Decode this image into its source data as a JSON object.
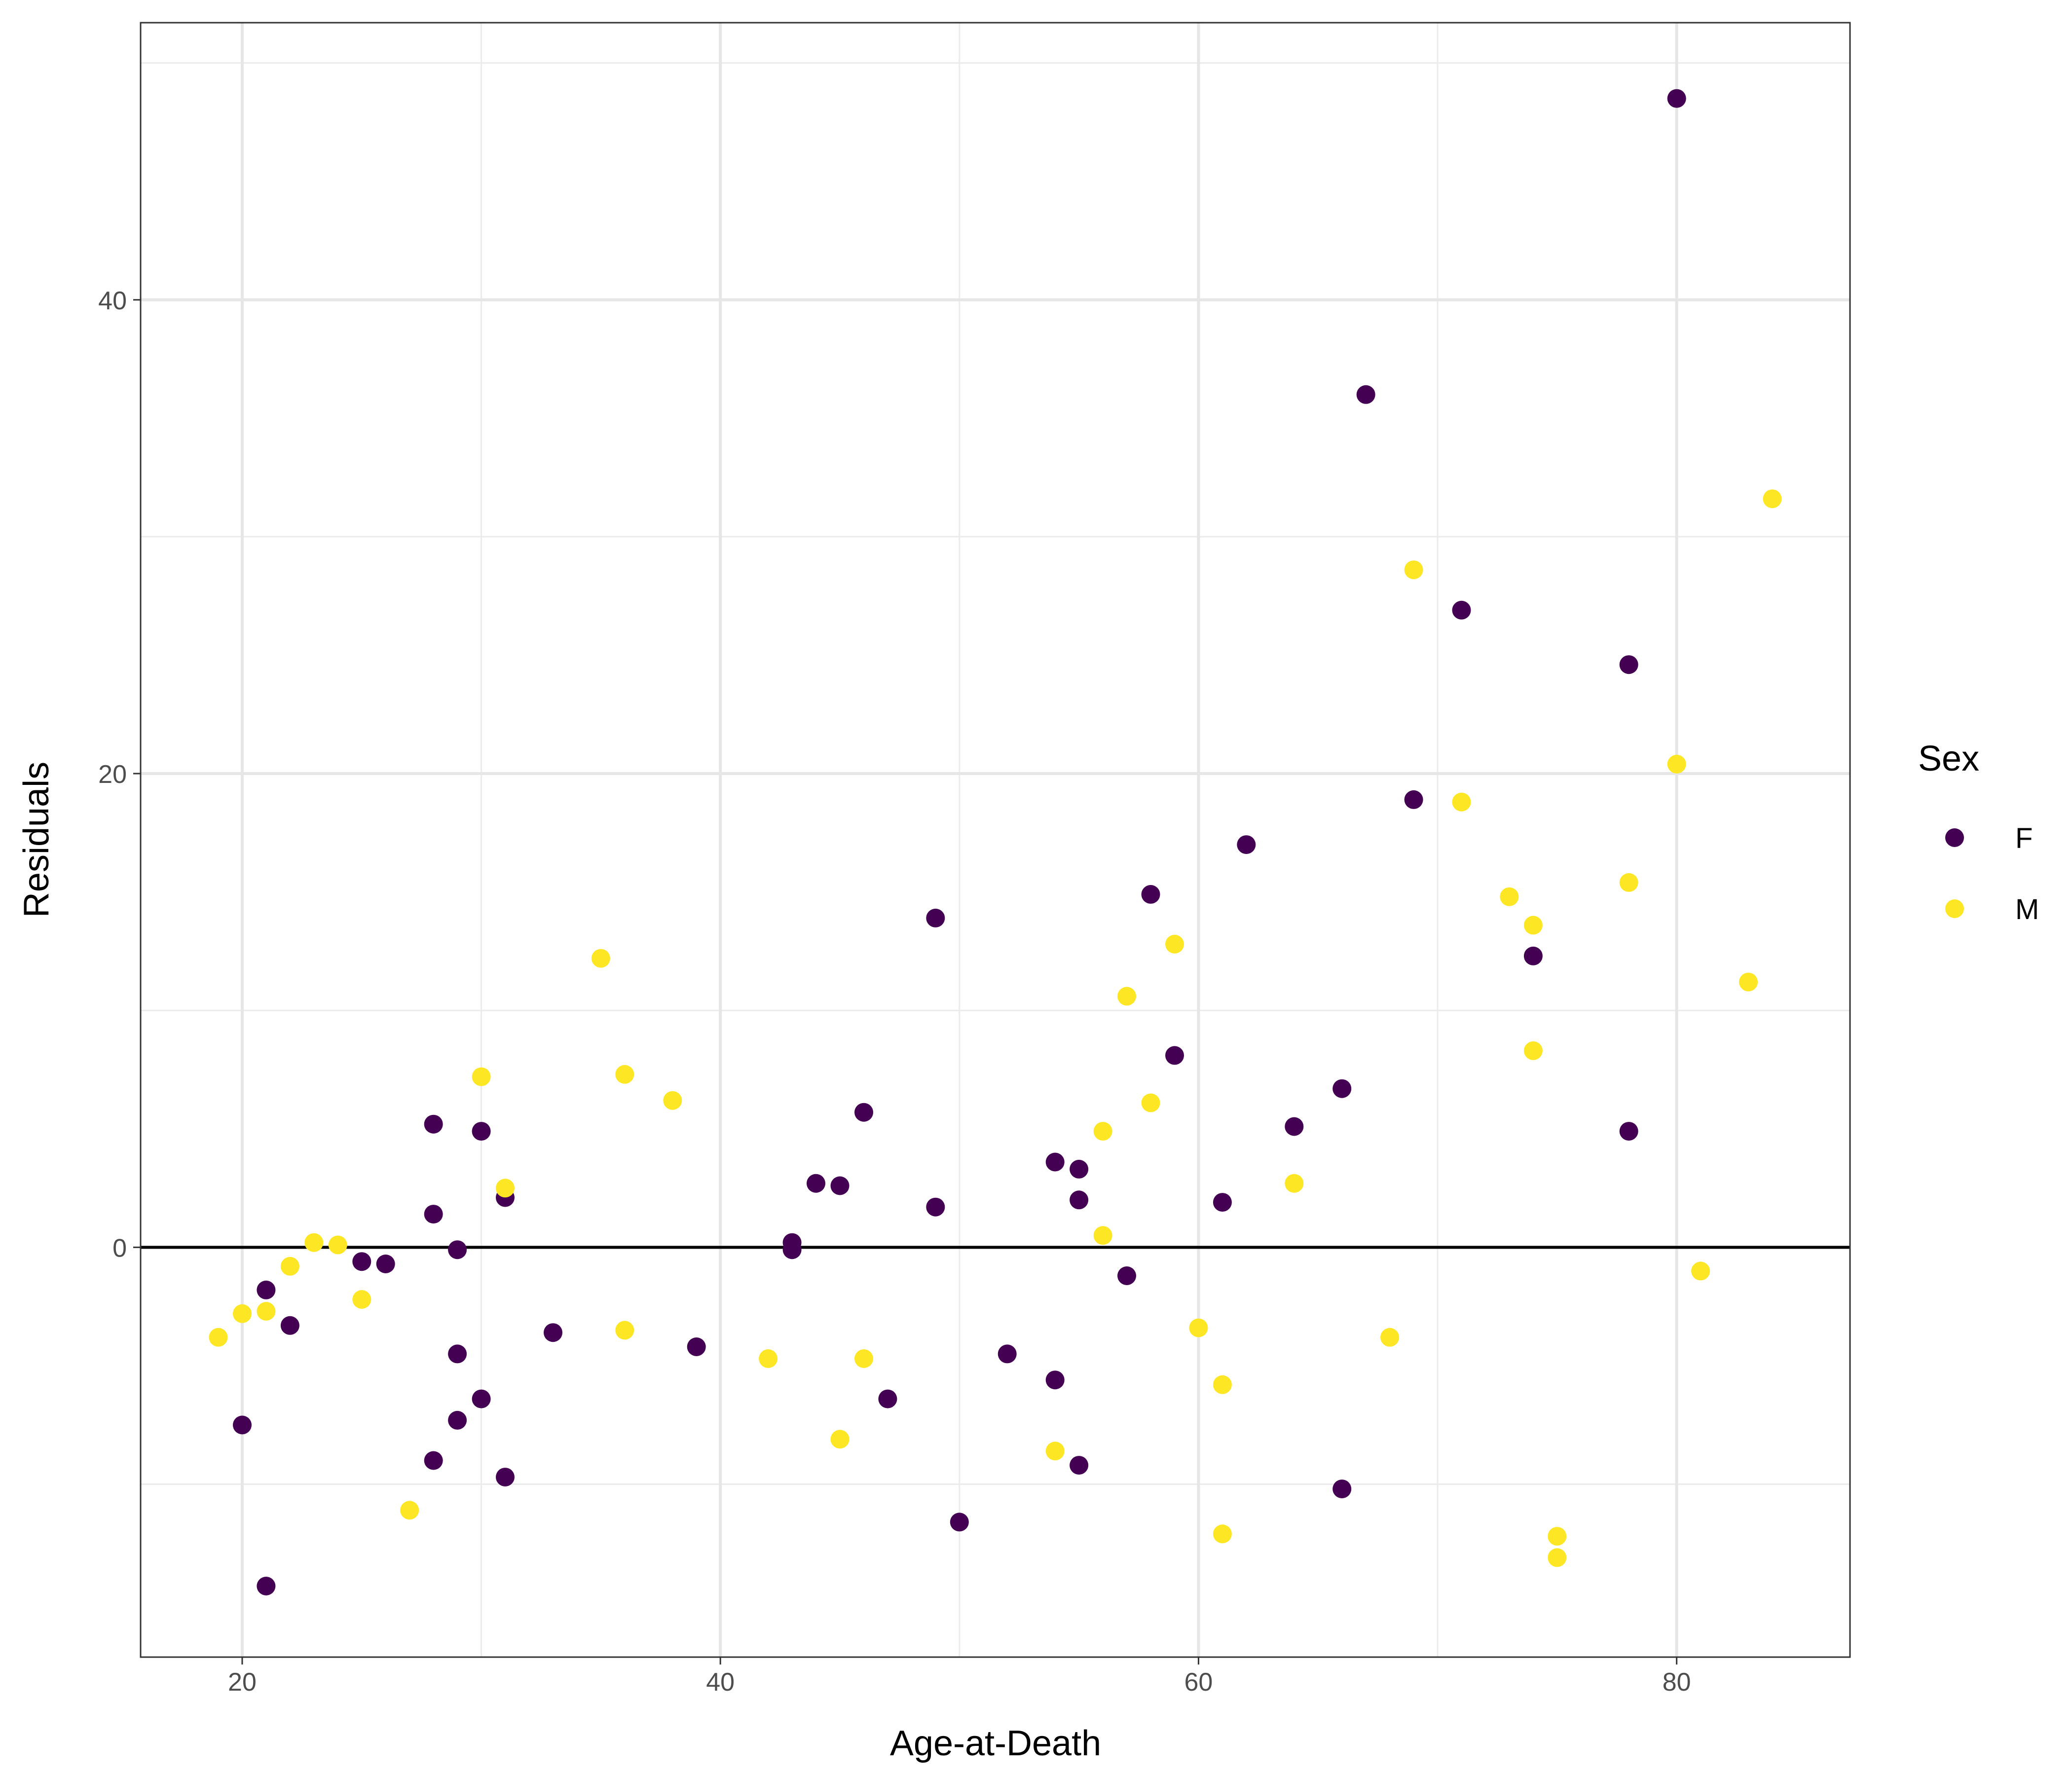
{
  "chart_data": {
    "type": "scatter",
    "title": "",
    "xlabel": "Age-at-Death",
    "ylabel": "Residuals",
    "xlim": [
      15.75,
      87.25
    ],
    "ylim": [
      -17.3,
      51.7
    ],
    "xticks": [
      20,
      40,
      60,
      80
    ],
    "yticks": [
      0,
      20,
      40
    ],
    "xtick_labels": [
      "20",
      "40",
      "60",
      "80"
    ],
    "ytick_labels": [
      "0",
      "20",
      "40"
    ],
    "grid": true,
    "reference_line": {
      "y": 0,
      "color": "#000000"
    },
    "legend": {
      "title": "Sex",
      "placement": "right",
      "entries": [
        {
          "label": "F",
          "color": "#440154"
        },
        {
          "label": "M",
          "color": "#FDE725"
        }
      ]
    },
    "series": [
      {
        "name": "F",
        "color": "#440154",
        "points": [
          [
            20,
            -7.5
          ],
          [
            21,
            -1.8
          ],
          [
            21,
            -14.3
          ],
          [
            22,
            -3.3
          ],
          [
            25,
            -0.6
          ],
          [
            26,
            -0.7
          ],
          [
            28,
            5.2
          ],
          [
            28,
            1.4
          ],
          [
            28,
            -9.0
          ],
          [
            29,
            -0.1
          ],
          [
            29,
            -4.5
          ],
          [
            29,
            -7.3
          ],
          [
            30,
            4.9
          ],
          [
            30,
            -6.4
          ],
          [
            31,
            2.1
          ],
          [
            31,
            -9.7
          ],
          [
            33,
            -3.6
          ],
          [
            39,
            -4.2
          ],
          [
            43,
            0.2
          ],
          [
            43,
            -0.1
          ],
          [
            44,
            2.7
          ],
          [
            45,
            2.6
          ],
          [
            46,
            5.7
          ],
          [
            47,
            -6.4
          ],
          [
            49,
            13.9
          ],
          [
            49,
            1.7
          ],
          [
            50,
            -11.6
          ],
          [
            52,
            -4.5
          ],
          [
            54,
            3.6
          ],
          [
            54,
            -5.6
          ],
          [
            55,
            3.3
          ],
          [
            55,
            2.0
          ],
          [
            55,
            -9.2
          ],
          [
            57,
            -1.2
          ],
          [
            58,
            14.9
          ],
          [
            59,
            8.1
          ],
          [
            61,
            1.9
          ],
          [
            62,
            17.0
          ],
          [
            64,
            5.1
          ],
          [
            66,
            6.7
          ],
          [
            66,
            -10.2
          ],
          [
            67,
            36.0
          ],
          [
            69,
            18.9
          ],
          [
            71,
            26.9
          ],
          [
            74,
            12.3
          ],
          [
            78,
            24.6
          ],
          [
            78,
            4.9
          ],
          [
            80,
            48.5
          ]
        ]
      },
      {
        "name": "M",
        "color": "#FDE725",
        "points": [
          [
            19,
            -3.8
          ],
          [
            20,
            -2.8
          ],
          [
            21,
            -2.7
          ],
          [
            22,
            -0.8
          ],
          [
            23,
            0.2
          ],
          [
            24,
            0.1
          ],
          [
            25,
            -2.2
          ],
          [
            27,
            -11.1
          ],
          [
            30,
            7.2
          ],
          [
            31,
            2.5
          ],
          [
            35,
            12.2
          ],
          [
            36,
            7.3
          ],
          [
            36,
            -3.5
          ],
          [
            38,
            6.2
          ],
          [
            42,
            -4.7
          ],
          [
            45,
            -8.1
          ],
          [
            46,
            -4.7
          ],
          [
            54,
            -8.6
          ],
          [
            56,
            4.9
          ],
          [
            56,
            0.5
          ],
          [
            57,
            10.6
          ],
          [
            58,
            6.1
          ],
          [
            59,
            12.8
          ],
          [
            60,
            -3.4
          ],
          [
            61,
            -5.8
          ],
          [
            61,
            -12.1
          ],
          [
            64,
            2.7
          ],
          [
            68,
            -3.8
          ],
          [
            69,
            28.6
          ],
          [
            71,
            18.8
          ],
          [
            73,
            14.8
          ],
          [
            74,
            13.6
          ],
          [
            74,
            8.3
          ],
          [
            75,
            -12.2
          ],
          [
            75,
            -13.1
          ],
          [
            78,
            15.4
          ],
          [
            80,
            20.4
          ],
          [
            81,
            -1.0
          ],
          [
            83,
            11.2
          ],
          [
            84,
            31.6
          ]
        ]
      }
    ]
  }
}
